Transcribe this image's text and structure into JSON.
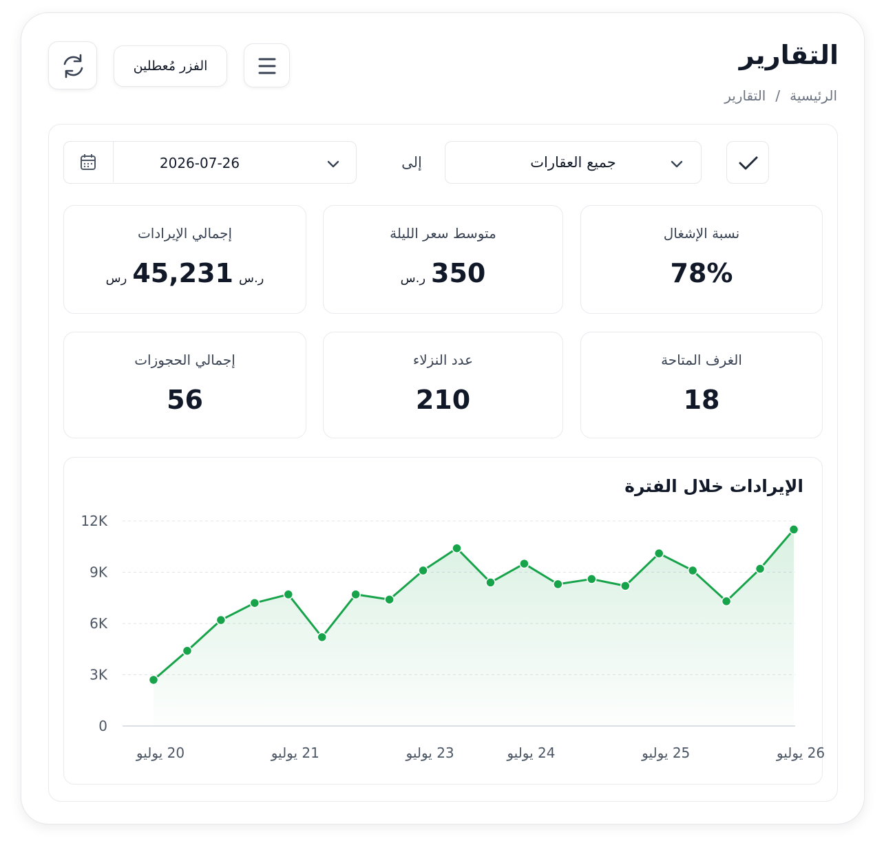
{
  "header": {
    "title": "التقارير",
    "breadcrumb": [
      "الرئيسية",
      "التقارير"
    ],
    "breadcrumb_separator": "/"
  },
  "toolbar": {
    "button": "الفزر مُعطلين"
  },
  "filters": {
    "property": "جميع العقارات",
    "to_label": "إلى",
    "date": "2026-07-26"
  },
  "stats": [
    {
      "label": "نسبة الإشغال",
      "value": "78%"
    },
    {
      "label": "متوسط سعر الليلة",
      "value": "350",
      "suffix": "ر.س"
    },
    {
      "label": "إجمالي الإيرادات",
      "value": "45,231",
      "prefix": "ر.س",
      "suffix": "رس"
    },
    {
      "label": "الغرف المتاحة",
      "value": "18"
    },
    {
      "label": "عدد النزلاء",
      "value": "210"
    },
    {
      "label": "إجمالي الحجوزات",
      "value": "56"
    }
  ],
  "chart_data": {
    "type": "line",
    "title": "الإيرادات خلال الفترة",
    "categories": [
      "20 يوليو",
      null,
      null,
      null,
      "21 يوليو",
      null,
      null,
      null,
      "23 يوليو",
      null,
      null,
      "24 يوليو",
      null,
      null,
      null,
      "25 يوليو",
      null,
      null,
      null,
      "26 يوليو"
    ],
    "values": [
      2700,
      4400,
      6200,
      7200,
      7700,
      5200,
      7700,
      7400,
      9100,
      10400,
      8400,
      9500,
      8300,
      8600,
      8200,
      10100,
      9100,
      7300,
      9200,
      11500
    ],
    "color": "#16a34a",
    "area": true,
    "grid": true,
    "ylim": [
      0,
      12000
    ],
    "yticks": [
      0,
      {
        "value": 3000,
        "label": "3K"
      },
      {
        "value": 6000,
        "label": "6K"
      },
      {
        "value": 9000,
        "label": "9K"
      },
      {
        "value": 12000,
        "label": "12K"
      }
    ]
  }
}
